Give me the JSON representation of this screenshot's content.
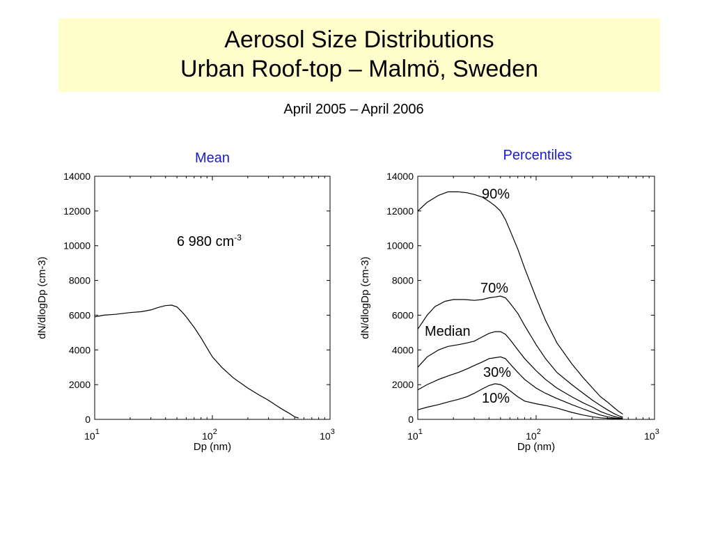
{
  "title": {
    "line1": "Aerosol Size Distributions",
    "line2": "Urban Roof-top – Malmö, Sweden"
  },
  "subtitle": "April 2005 – April 2006",
  "colors": {
    "title_bg": "#ffffcc",
    "panel_title": "#1a1acc",
    "line": "#000000"
  },
  "chart_data": [
    {
      "type": "line",
      "title": "Mean",
      "xlabel": "Dp (nm)",
      "ylabel": "dN/dlogDp (cm-3)",
      "xscale": "log",
      "xlim": [
        10,
        1000
      ],
      "ylim": [
        0,
        14000
      ],
      "xticks": [
        {
          "base": "10",
          "exp": "1",
          "value": 10
        },
        {
          "base": "10",
          "exp": "2",
          "value": 100
        },
        {
          "base": "10",
          "exp": "3",
          "value": 1000
        }
      ],
      "yticks": [
        0,
        2000,
        4000,
        6000,
        8000,
        10000,
        12000,
        14000
      ],
      "annotation": {
        "text": "6 980 cm",
        "sup": "-3"
      },
      "series": [
        {
          "x": [
            10,
            12,
            15,
            20,
            25,
            30,
            35,
            40,
            45,
            50,
            55,
            60,
            70,
            80,
            100,
            120,
            150,
            200,
            250,
            300,
            350,
            400,
            450,
            500,
            540
          ],
          "y": [
            5900,
            6000,
            6050,
            6150,
            6200,
            6300,
            6450,
            6550,
            6580,
            6480,
            6200,
            5900,
            5300,
            4700,
            3600,
            3000,
            2400,
            1800,
            1400,
            1100,
            800,
            550,
            350,
            150,
            80
          ]
        }
      ]
    },
    {
      "type": "line",
      "title": "Percentiles",
      "xlabel": "Dp (nm)",
      "ylabel": "dN/dlogDp (cm-3)",
      "xscale": "log",
      "xlim": [
        10,
        1000
      ],
      "ylim": [
        0,
        14000
      ],
      "xticks": [
        {
          "base": "10",
          "exp": "1",
          "value": 10
        },
        {
          "base": "10",
          "exp": "2",
          "value": 100
        },
        {
          "base": "10",
          "exp": "3",
          "value": 1000
        }
      ],
      "yticks": [
        0,
        2000,
        4000,
        6000,
        8000,
        10000,
        12000,
        14000
      ],
      "series": [
        {
          "name": "90%",
          "label_at": [
            530,
            276
          ],
          "x": [
            10,
            12,
            15,
            18,
            22,
            26,
            30,
            35,
            40,
            45,
            50,
            55,
            60,
            70,
            80,
            100,
            120,
            150,
            200,
            250,
            300,
            350,
            400,
            450,
            500,
            540
          ],
          "y": [
            12000,
            12500,
            12900,
            13100,
            13100,
            13050,
            12950,
            12800,
            12550,
            12300,
            12000,
            11500,
            10900,
            9800,
            8700,
            7000,
            5700,
            4400,
            3200,
            2400,
            1800,
            1300,
            1000,
            700,
            450,
            300
          ]
        },
        {
          "name": "70%",
          "label_at": [
            530,
            412
          ],
          "x": [
            10,
            12,
            14,
            17,
            20,
            25,
            30,
            35,
            40,
            45,
            50,
            55,
            60,
            70,
            80,
            100,
            120,
            150,
            200,
            250,
            300,
            350,
            400,
            450,
            500,
            540
          ],
          "y": [
            5200,
            6000,
            6500,
            6800,
            6900,
            6900,
            6850,
            6900,
            7000,
            7050,
            7100,
            7000,
            6700,
            6100,
            5400,
            4300,
            3500,
            2700,
            2000,
            1500,
            1100,
            800,
            550,
            350,
            200,
            120
          ]
        },
        {
          "name": "Median",
          "label_at": [
            450,
            474
          ],
          "x": [
            10,
            12,
            15,
            18,
            22,
            26,
            30,
            35,
            40,
            45,
            50,
            55,
            60,
            70,
            80,
            100,
            120,
            150,
            200,
            250,
            300,
            350,
            400,
            450,
            500,
            540
          ],
          "y": [
            3000,
            3600,
            4000,
            4200,
            4300,
            4400,
            4500,
            4750,
            4950,
            5050,
            5050,
            4900,
            4600,
            4000,
            3500,
            2800,
            2300,
            1800,
            1300,
            950,
            700,
            450,
            300,
            180,
            100,
            60
          ]
        },
        {
          "name": "30%",
          "label_at": [
            535,
            534
          ],
          "x": [
            10,
            12,
            15,
            18,
            22,
            26,
            30,
            35,
            40,
            45,
            50,
            55,
            60,
            70,
            80,
            100,
            120,
            150,
            200,
            250,
            300,
            350,
            400,
            450,
            500,
            540
          ],
          "y": [
            1700,
            2000,
            2300,
            2500,
            2700,
            2900,
            3100,
            3300,
            3500,
            3550,
            3600,
            3500,
            3200,
            2700,
            2300,
            1800,
            1500,
            1200,
            850,
            600,
            400,
            250,
            150,
            90,
            50,
            30
          ]
        },
        {
          "name": "10%",
          "label_at": [
            533,
            572
          ],
          "x": [
            10,
            12,
            15,
            18,
            22,
            26,
            30,
            35,
            40,
            45,
            50,
            55,
            60,
            70,
            80,
            100,
            120,
            150,
            200,
            250,
            300,
            350,
            400,
            450,
            500,
            540
          ],
          "y": [
            550,
            700,
            850,
            1000,
            1150,
            1300,
            1500,
            1750,
            1950,
            2050,
            2000,
            1850,
            1650,
            1300,
            1050,
            900,
            800,
            650,
            400,
            250,
            150,
            90,
            60,
            40,
            25,
            15
          ]
        }
      ]
    }
  ]
}
